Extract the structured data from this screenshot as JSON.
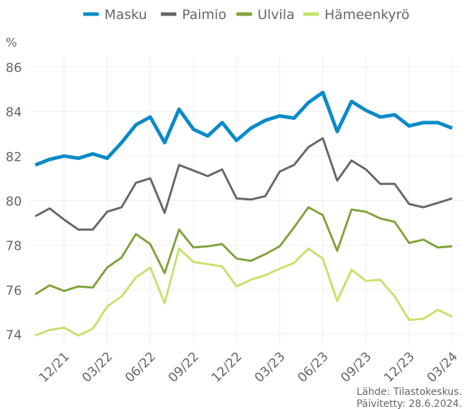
{
  "chart_data": {
    "type": "line",
    "y_label": "%",
    "source": [
      "Lähde: Tilastokeskus.",
      "Päivitetty: 28.6.2024."
    ],
    "categories": [
      null,
      null,
      "12/21",
      null,
      null,
      "03/22",
      null,
      null,
      "06/22",
      null,
      null,
      "09/22",
      null,
      null,
      "12/22",
      null,
      null,
      "03/23",
      null,
      null,
      "06/23",
      null,
      null,
      "09/23",
      null,
      null,
      "12/23",
      null,
      null,
      "03/24"
    ],
    "series": [
      {
        "name": "Masku",
        "color": "#0a8ac9",
        "values": [
          81.6,
          81.85,
          82.0,
          81.9,
          82.1,
          81.9,
          82.6,
          83.4,
          83.75,
          82.6,
          84.1,
          83.2,
          82.9,
          83.5,
          82.7,
          83.25,
          83.6,
          83.8,
          83.7,
          84.4,
          84.85,
          83.1,
          84.45,
          84.05,
          83.75,
          83.85,
          83.35,
          83.5,
          83.5,
          83.25
        ]
      },
      {
        "name": "Paimio",
        "color": "#666666",
        "values": [
          79.3,
          79.65,
          79.15,
          78.7,
          78.7,
          79.5,
          79.7,
          80.8,
          81.0,
          79.45,
          81.6,
          81.35,
          81.1,
          81.4,
          80.1,
          80.05,
          80.2,
          81.3,
          81.6,
          82.4,
          82.8,
          80.9,
          81.8,
          81.4,
          80.75,
          80.75,
          79.85,
          79.7,
          79.9,
          80.1
        ]
      },
      {
        "name": "Ulvila",
        "color": "#7ea23a",
        "values": [
          75.8,
          76.2,
          75.95,
          76.15,
          76.1,
          77.0,
          77.45,
          78.5,
          78.05,
          76.75,
          78.7,
          77.9,
          77.95,
          78.05,
          77.4,
          77.3,
          77.6,
          77.95,
          78.8,
          79.7,
          79.35,
          77.75,
          79.6,
          79.5,
          79.2,
          79.05,
          78.1,
          78.25,
          77.9,
          77.95
        ]
      },
      {
        "name": "Hämeenkyrö",
        "color": "#c3e26b",
        "values": [
          73.95,
          74.2,
          74.3,
          73.95,
          74.25,
          75.25,
          75.7,
          76.55,
          77.0,
          75.4,
          77.85,
          77.25,
          77.15,
          77.05,
          76.15,
          76.45,
          76.65,
          76.95,
          77.2,
          77.85,
          77.4,
          75.5,
          76.9,
          76.4,
          76.45,
          75.7,
          74.65,
          74.7,
          75.1,
          74.8
        ]
      }
    ],
    "ylim": [
      73.5,
      86.5
    ],
    "yticks": [
      74,
      76,
      78,
      80,
      82,
      84,
      86
    ],
    "grid": true,
    "legend": "top"
  }
}
